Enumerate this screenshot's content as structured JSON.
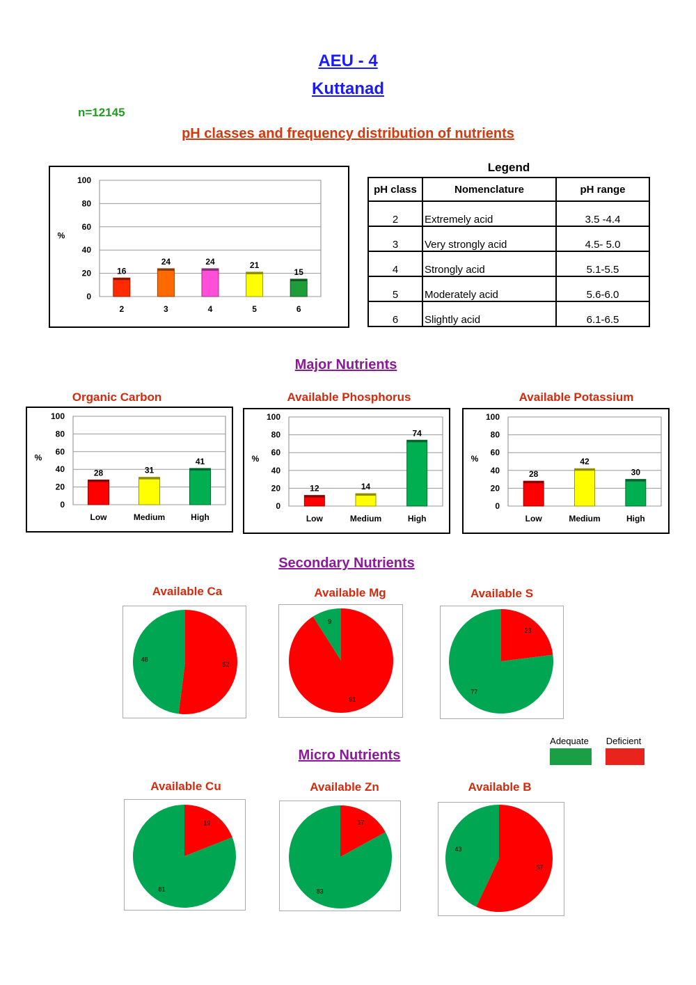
{
  "header": {
    "title": "AEU - 4",
    "subtitle": "Kuttanad",
    "n_label": "n=12145",
    "ph_heading": "pH classes and frequency distribution of nutrients"
  },
  "ph_legend": {
    "title": "Legend",
    "columns": [
      "pH class",
      "Nomenclature",
      "pH range"
    ],
    "rows": [
      [
        "2",
        "Extremely acid",
        "3.5 -4.4"
      ],
      [
        "3",
        "Very strongly acid",
        "4.5- 5.0"
      ],
      [
        "4",
        "Strongly acid",
        "5.1-5.5"
      ],
      [
        "5",
        "Moderately acid",
        "5.6-6.0"
      ],
      [
        "6",
        "Slightly acid",
        "6.1-6.5"
      ]
    ]
  },
  "sections": {
    "major": "Major Nutrients",
    "secondary": "Secondary Nutrients",
    "micro": "Micro Nutrients"
  },
  "pie_legend": {
    "adequate": "Adequate",
    "deficient": "Deficient",
    "adequate_color": "#00a651",
    "deficient_color": "#ff0000"
  },
  "chart_data": [
    {
      "id": "ph",
      "type": "bar",
      "title": "",
      "ylabel": "%",
      "ylim": [
        0,
        100
      ],
      "yticks": [
        0,
        20,
        40,
        60,
        80,
        100
      ],
      "categories": [
        "2",
        "3",
        "4",
        "5",
        "6"
      ],
      "values": [
        16,
        24,
        24,
        21,
        15
      ],
      "colors": [
        "#ff2a00",
        "#ff6a00",
        "#ff4fd8",
        "#ffff00",
        "#1e9e3a"
      ],
      "grid": true
    },
    {
      "id": "oc",
      "type": "bar",
      "title": "Organic Carbon",
      "ylabel": "%",
      "ylim": [
        0,
        100
      ],
      "yticks": [
        0,
        20,
        40,
        60,
        80,
        100
      ],
      "categories": [
        "Low",
        "Medium",
        "High"
      ],
      "values": [
        28,
        31,
        41
      ],
      "colors": [
        "#ff0000",
        "#ffff00",
        "#00b050"
      ],
      "grid": true
    },
    {
      "id": "p",
      "type": "bar",
      "title": "Available Phosphorus",
      "ylabel": "%",
      "ylim": [
        0,
        100
      ],
      "yticks": [
        0,
        20,
        40,
        60,
        80,
        100
      ],
      "categories": [
        "Low",
        "Medium",
        "High"
      ],
      "values": [
        12,
        14,
        74
      ],
      "colors": [
        "#ff0000",
        "#ffff00",
        "#00b050"
      ],
      "grid": true
    },
    {
      "id": "k",
      "type": "bar",
      "title": "Available Potassium",
      "ylabel": "%",
      "ylim": [
        0,
        100
      ],
      "yticks": [
        0,
        20,
        40,
        60,
        80,
        100
      ],
      "categories": [
        "Low",
        "Medium",
        "High"
      ],
      "values": [
        28,
        42,
        30
      ],
      "colors": [
        "#ff0000",
        "#ffff00",
        "#00b050"
      ],
      "grid": true
    },
    {
      "id": "ca",
      "type": "pie",
      "title": "Available Ca",
      "slices": [
        {
          "category": "Deficient",
          "value": 52
        },
        {
          "category": "Adequate",
          "value": 48
        }
      ]
    },
    {
      "id": "mg",
      "type": "pie",
      "title": "Available Mg",
      "slices": [
        {
          "category": "Deficient",
          "value": 91
        },
        {
          "category": "Adequate",
          "value": 9
        }
      ]
    },
    {
      "id": "s",
      "type": "pie",
      "title": "Available S",
      "slices": [
        {
          "category": "Deficient",
          "value": 23
        },
        {
          "category": "Adequate",
          "value": 77
        }
      ]
    },
    {
      "id": "cu",
      "type": "pie",
      "title": "Available Cu",
      "slices": [
        {
          "category": "Deficient",
          "value": 19
        },
        {
          "category": "Adequate",
          "value": 81
        }
      ]
    },
    {
      "id": "zn",
      "type": "pie",
      "title": "Available Zn",
      "slices": [
        {
          "category": "Deficient",
          "value": 17
        },
        {
          "category": "Adequate",
          "value": 83
        }
      ]
    },
    {
      "id": "b",
      "type": "pie",
      "title": "Available B",
      "slices": [
        {
          "category": "Deficient",
          "value": 57
        },
        {
          "category": "Adequate",
          "value": 43
        }
      ]
    }
  ]
}
